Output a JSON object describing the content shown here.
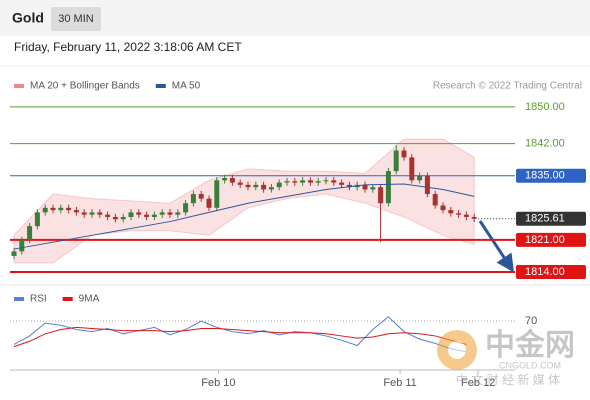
{
  "header": {
    "symbol": "Gold",
    "timeframe": "30 MIN",
    "timestamp": "Friday, February 11, 2022 3:18:06 AM CET"
  },
  "watermark": {
    "logo": "中金网",
    "site": "CNGOLD.COM",
    "tagline": "中 文 财 经 新 媒 体"
  },
  "chart_data": [
    {
      "type": "candlestick",
      "source": "Research © 2022 Trading Central",
      "ylim": [
        1811.6,
        1852.6
      ],
      "up_color": "#3c7d3c",
      "down_color": "#a83232",
      "open": [
        1817.5,
        1818.5,
        1821,
        1824,
        1827,
        1828,
        1827.5,
        1828,
        1827.5,
        1827,
        1826.5,
        1827,
        1826.5,
        1826,
        1825.5,
        1826,
        1827,
        1826.5,
        1826,
        1826.5,
        1827,
        1826.5,
        1827,
        1829,
        1831,
        1830,
        1828,
        1834,
        1834.5,
        1833.5,
        1833,
        1832.5,
        1833,
        1832,
        1832.5,
        1833.5,
        1833.8,
        1833.5,
        1834,
        1833.5,
        1833.8,
        1834,
        1833.5,
        1833,
        1832.5,
        1833,
        1832,
        1832.5,
        1829,
        1836,
        1840.5,
        1839,
        1834,
        1835,
        1831,
        1828.5,
        1827.5,
        1826.8,
        1826.5,
        1826
      ],
      "high": [
        1819.2,
        1821.7,
        1824.7,
        1827.7,
        1828.7,
        1828.7,
        1828.7,
        1828.7,
        1828.2,
        1827.7,
        1827.7,
        1827.7,
        1827.2,
        1826.7,
        1826.7,
        1827.7,
        1827.7,
        1827.2,
        1827.2,
        1827.7,
        1827.7,
        1827.7,
        1829.7,
        1831.7,
        1831.7,
        1830.7,
        1834.7,
        1835.2,
        1835.2,
        1834.2,
        1833.7,
        1833.7,
        1833.7,
        1833.2,
        1834.2,
        1834.5,
        1834.5,
        1834.7,
        1834.7,
        1834.5,
        1834.7,
        1834.7,
        1834.2,
        1833.7,
        1833.7,
        1833.7,
        1833.2,
        1833.2,
        1836.7,
        1841.7,
        1841.2,
        1839.7,
        1835.7,
        1835.7,
        1831.7,
        1829.2,
        1828.2,
        1827.5,
        1827.2,
        1826.7
      ],
      "low": [
        1816.8,
        1817.8,
        1820.3,
        1823.3,
        1826.3,
        1826.8,
        1826.8,
        1826.8,
        1826.3,
        1825.8,
        1825.8,
        1825.8,
        1825.3,
        1824.8,
        1824.8,
        1825.3,
        1825.8,
        1825.3,
        1825.3,
        1825.8,
        1825.8,
        1825.8,
        1826.3,
        1828.3,
        1829.3,
        1827.3,
        1827.3,
        1833.3,
        1832.8,
        1832.3,
        1831.8,
        1831.8,
        1831.3,
        1831.3,
        1831.8,
        1832.8,
        1832.8,
        1832.8,
        1832.8,
        1832.8,
        1833.1,
        1832.8,
        1832.3,
        1831.8,
        1831.8,
        1831.3,
        1831.3,
        1820.5,
        1828.3,
        1835.3,
        1838.3,
        1833.3,
        1833.3,
        1830.3,
        1827.8,
        1826.8,
        1826.1,
        1825.8,
        1825.3,
        1824.9
      ],
      "close": [
        1818.5,
        1821,
        1824,
        1827,
        1828,
        1827.5,
        1828,
        1827.5,
        1827,
        1826.5,
        1827,
        1826.5,
        1826,
        1825.5,
        1826,
        1827,
        1826.5,
        1826,
        1826.5,
        1827,
        1826.5,
        1827,
        1829,
        1831,
        1830,
        1828,
        1834,
        1834.5,
        1833.5,
        1833,
        1832.5,
        1833,
        1832,
        1832.5,
        1833.5,
        1833.8,
        1833.5,
        1834,
        1833.5,
        1833.8,
        1834,
        1833.5,
        1833,
        1832.5,
        1833,
        1832,
        1832.5,
        1829,
        1836,
        1840.5,
        1839,
        1834,
        1835,
        1831,
        1828.5,
        1827.5,
        1826.8,
        1826.5,
        1826,
        1825.61
      ],
      "ma_x": [
        0,
        5,
        10,
        15,
        20,
        25,
        30,
        35,
        40,
        45,
        50,
        55,
        59
      ],
      "series": [
        {
          "name": "MA 20 + Bollinger Bands",
          "color": "#f08a8a",
          "upper": [
            1822,
            1831,
            1830,
            1829.5,
            1829,
            1834,
            1836.5,
            1836,
            1836,
            1835.5,
            1843,
            1843,
            1839
          ],
          "lower": [
            1816,
            1816,
            1822,
            1823,
            1823,
            1822,
            1828,
            1830,
            1831,
            1829,
            1826,
            1822,
            1820
          ]
        },
        {
          "name": "MA 50",
          "color": "#2b5797",
          "values": [
            1819,
            1820.5,
            1822,
            1823.5,
            1825,
            1827,
            1829,
            1830.5,
            1832,
            1833,
            1833.2,
            1832,
            1830.5
          ]
        }
      ],
      "levels": [
        {
          "value": 1850,
          "label": "1850.00",
          "color": "#5a9e2f",
          "style": "thin",
          "badge": false
        },
        {
          "value": 1842,
          "label": "1842.00",
          "color": "#5a9e2f",
          "style": "thin",
          "badge": false
        },
        {
          "value": 1835,
          "label": "1835.00",
          "color": "#2e63c4",
          "style": "thin",
          "badge": true
        },
        {
          "value": 1825.61,
          "label": "1825.61",
          "color": "#333333",
          "style": "dotted",
          "badge": true
        },
        {
          "value": 1821,
          "label": "1821.00",
          "color": "#e01414",
          "style": "thick",
          "badge": true
        },
        {
          "value": 1814,
          "label": "1814.00",
          "color": "#e01414",
          "style": "thick",
          "badge": true
        }
      ]
    },
    {
      "type": "line",
      "x": [
        0,
        2,
        4,
        6,
        8,
        10,
        12,
        14,
        16,
        18,
        20,
        22,
        24,
        26,
        28,
        30,
        32,
        34,
        36,
        38,
        40,
        42,
        44,
        46,
        48,
        50,
        52,
        54,
        56,
        58
      ],
      "series": [
        {
          "name": "RSI",
          "color": "#5a7fd6",
          "values": [
            48,
            56,
            68,
            66,
            62,
            60,
            63,
            58,
            61,
            64,
            57,
            62,
            70,
            64,
            60,
            58,
            61,
            57,
            60,
            59,
            56,
            52,
            47,
            62,
            74,
            60,
            53,
            49,
            44,
            41
          ]
        },
        {
          "name": "9MA",
          "color": "#e01414",
          "values": [
            46,
            51,
            58,
            62,
            64,
            63,
            62,
            61,
            61,
            61,
            60,
            61,
            63,
            63,
            62,
            61,
            60,
            59,
            59,
            59,
            58,
            56,
            54,
            55,
            58,
            59,
            58,
            56,
            52,
            48
          ]
        }
      ],
      "ylim": [
        25,
        85
      ],
      "yticks": [
        70
      ],
      "xticks": [
        {
          "value": 26.2,
          "label": "Feb 10"
        },
        {
          "value": 49.5,
          "label": "Feb 11"
        },
        {
          "value": 59.5,
          "label": "Feb 12"
        }
      ]
    }
  ]
}
